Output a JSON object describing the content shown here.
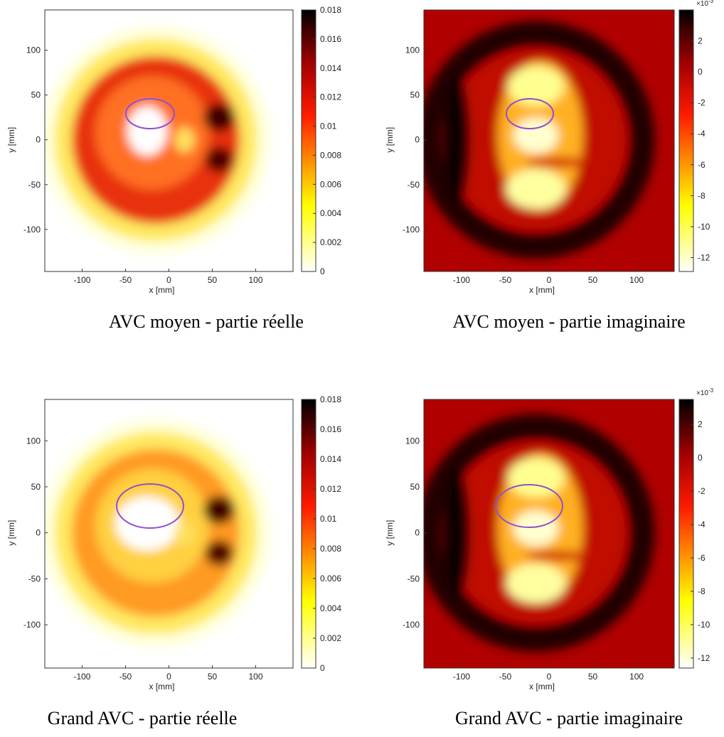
{
  "chart_data": [
    {
      "type": "heatmap",
      "title": "AVC moyen - partie réelle",
      "xlabel": "x [mm]",
      "ylabel": "y [mm]",
      "xlim": [
        -143,
        143
      ],
      "ylim": [
        -147,
        145
      ],
      "xticks": [
        -100,
        -50,
        0,
        50,
        100
      ],
      "yticks": [
        -100,
        -50,
        0,
        50,
        100
      ],
      "clim": [
        0,
        0.018
      ],
      "cticks": [
        0,
        0.002,
        0.004,
        0.006,
        0.008,
        0.01,
        0.012,
        0.014,
        0.016,
        0.018
      ],
      "colormap": "hot-reversed"
    },
    {
      "type": "heatmap",
      "title": "AVC moyen - partie imaginaire",
      "xlabel": "x [mm]",
      "ylabel": "y [mm]",
      "xlim": [
        -143,
        143
      ],
      "ylim": [
        -147,
        145
      ],
      "xticks": [
        -100,
        -50,
        0,
        50,
        100
      ],
      "yticks": [
        -100,
        -50,
        0,
        50,
        100
      ],
      "clim": [
        -12.9,
        4
      ],
      "cticks": [
        -12,
        -10,
        -8,
        -6,
        -4,
        -2,
        0,
        2
      ],
      "cmultiplier": "×10",
      "cexponent": "-3",
      "colormap": "hot-reversed"
    },
    {
      "type": "heatmap",
      "title": "Grand AVC  - partie réelle",
      "xlabel": "x [mm]",
      "ylabel": "y [mm]",
      "xlim": [
        -143,
        143
      ],
      "ylim": [
        -147,
        145
      ],
      "xticks": [
        -100,
        -50,
        0,
        50,
        100
      ],
      "yticks": [
        -100,
        -50,
        0,
        50,
        100
      ],
      "clim": [
        0,
        0.018
      ],
      "cticks": [
        0,
        0.002,
        0.004,
        0.006,
        0.008,
        0.01,
        0.012,
        0.014,
        0.016,
        0.018
      ],
      "colormap": "hot-reversed"
    },
    {
      "type": "heatmap",
      "title": "Grand AVC  - partie imaginaire",
      "xlabel": "x [mm]",
      "ylabel": "y [mm]",
      "xlim": [
        -143,
        143
      ],
      "ylim": [
        -147,
        145
      ],
      "xticks": [
        -100,
        -50,
        0,
        50,
        100
      ],
      "yticks": [
        -100,
        -50,
        0,
        50,
        100
      ],
      "clim": [
        -12.6,
        3.5
      ],
      "cticks": [
        -12,
        -10,
        -8,
        -6,
        -4,
        -2,
        0,
        2
      ],
      "cmultiplier": "×10",
      "cexponent": "-3",
      "colormap": "hot-reversed"
    }
  ]
}
